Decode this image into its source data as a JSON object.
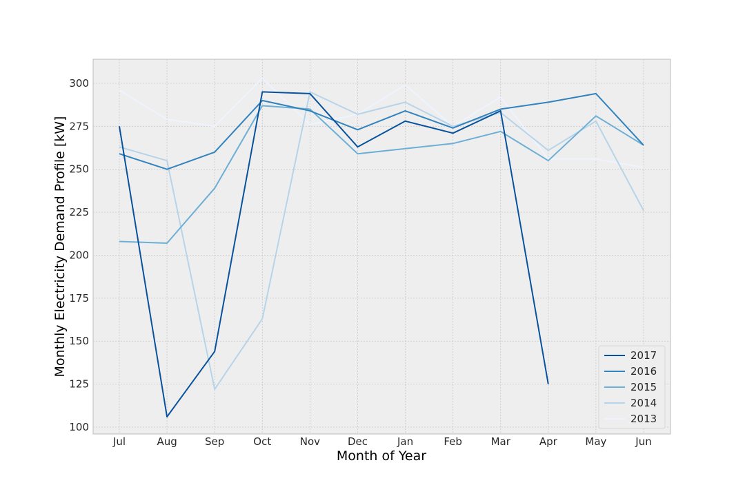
{
  "chart_data": {
    "type": "line",
    "title": "",
    "xlabel": "Month of Year",
    "ylabel": "Monthly Electricity Demand Profile [kW]",
    "categories": [
      "Jul",
      "Aug",
      "Sep",
      "Oct",
      "Nov",
      "Dec",
      "Jan",
      "Feb",
      "Mar",
      "Apr",
      "May",
      "Jun"
    ],
    "ylim": [
      96,
      314
    ],
    "yticks": [
      100,
      125,
      150,
      175,
      200,
      225,
      250,
      275,
      300
    ],
    "grid": true,
    "legend_position": "bottom-right",
    "series": [
      {
        "name": "2017",
        "color": "#08519c",
        "values": [
          275,
          106,
          144,
          295,
          294,
          263,
          278,
          271,
          284,
          125,
          null,
          null
        ]
      },
      {
        "name": "2016",
        "color": "#3182bd",
        "values": [
          259,
          250,
          260,
          290,
          284,
          273,
          284,
          274,
          285,
          289,
          294,
          264
        ]
      },
      {
        "name": "2015",
        "color": "#6baed6",
        "values": [
          208,
          207,
          239,
          287,
          285,
          259,
          262,
          265,
          272,
          255,
          281,
          264
        ]
      },
      {
        "name": "2014",
        "color": "#b6d4e9",
        "values": [
          263,
          255,
          122,
          163,
          295,
          282,
          289,
          275,
          283,
          261,
          278,
          226
        ]
      },
      {
        "name": "2013",
        "color": "#eff3ff",
        "values": [
          296,
          279,
          275,
          303,
          276,
          282,
          299,
          275,
          292,
          256,
          256,
          251
        ]
      }
    ]
  }
}
